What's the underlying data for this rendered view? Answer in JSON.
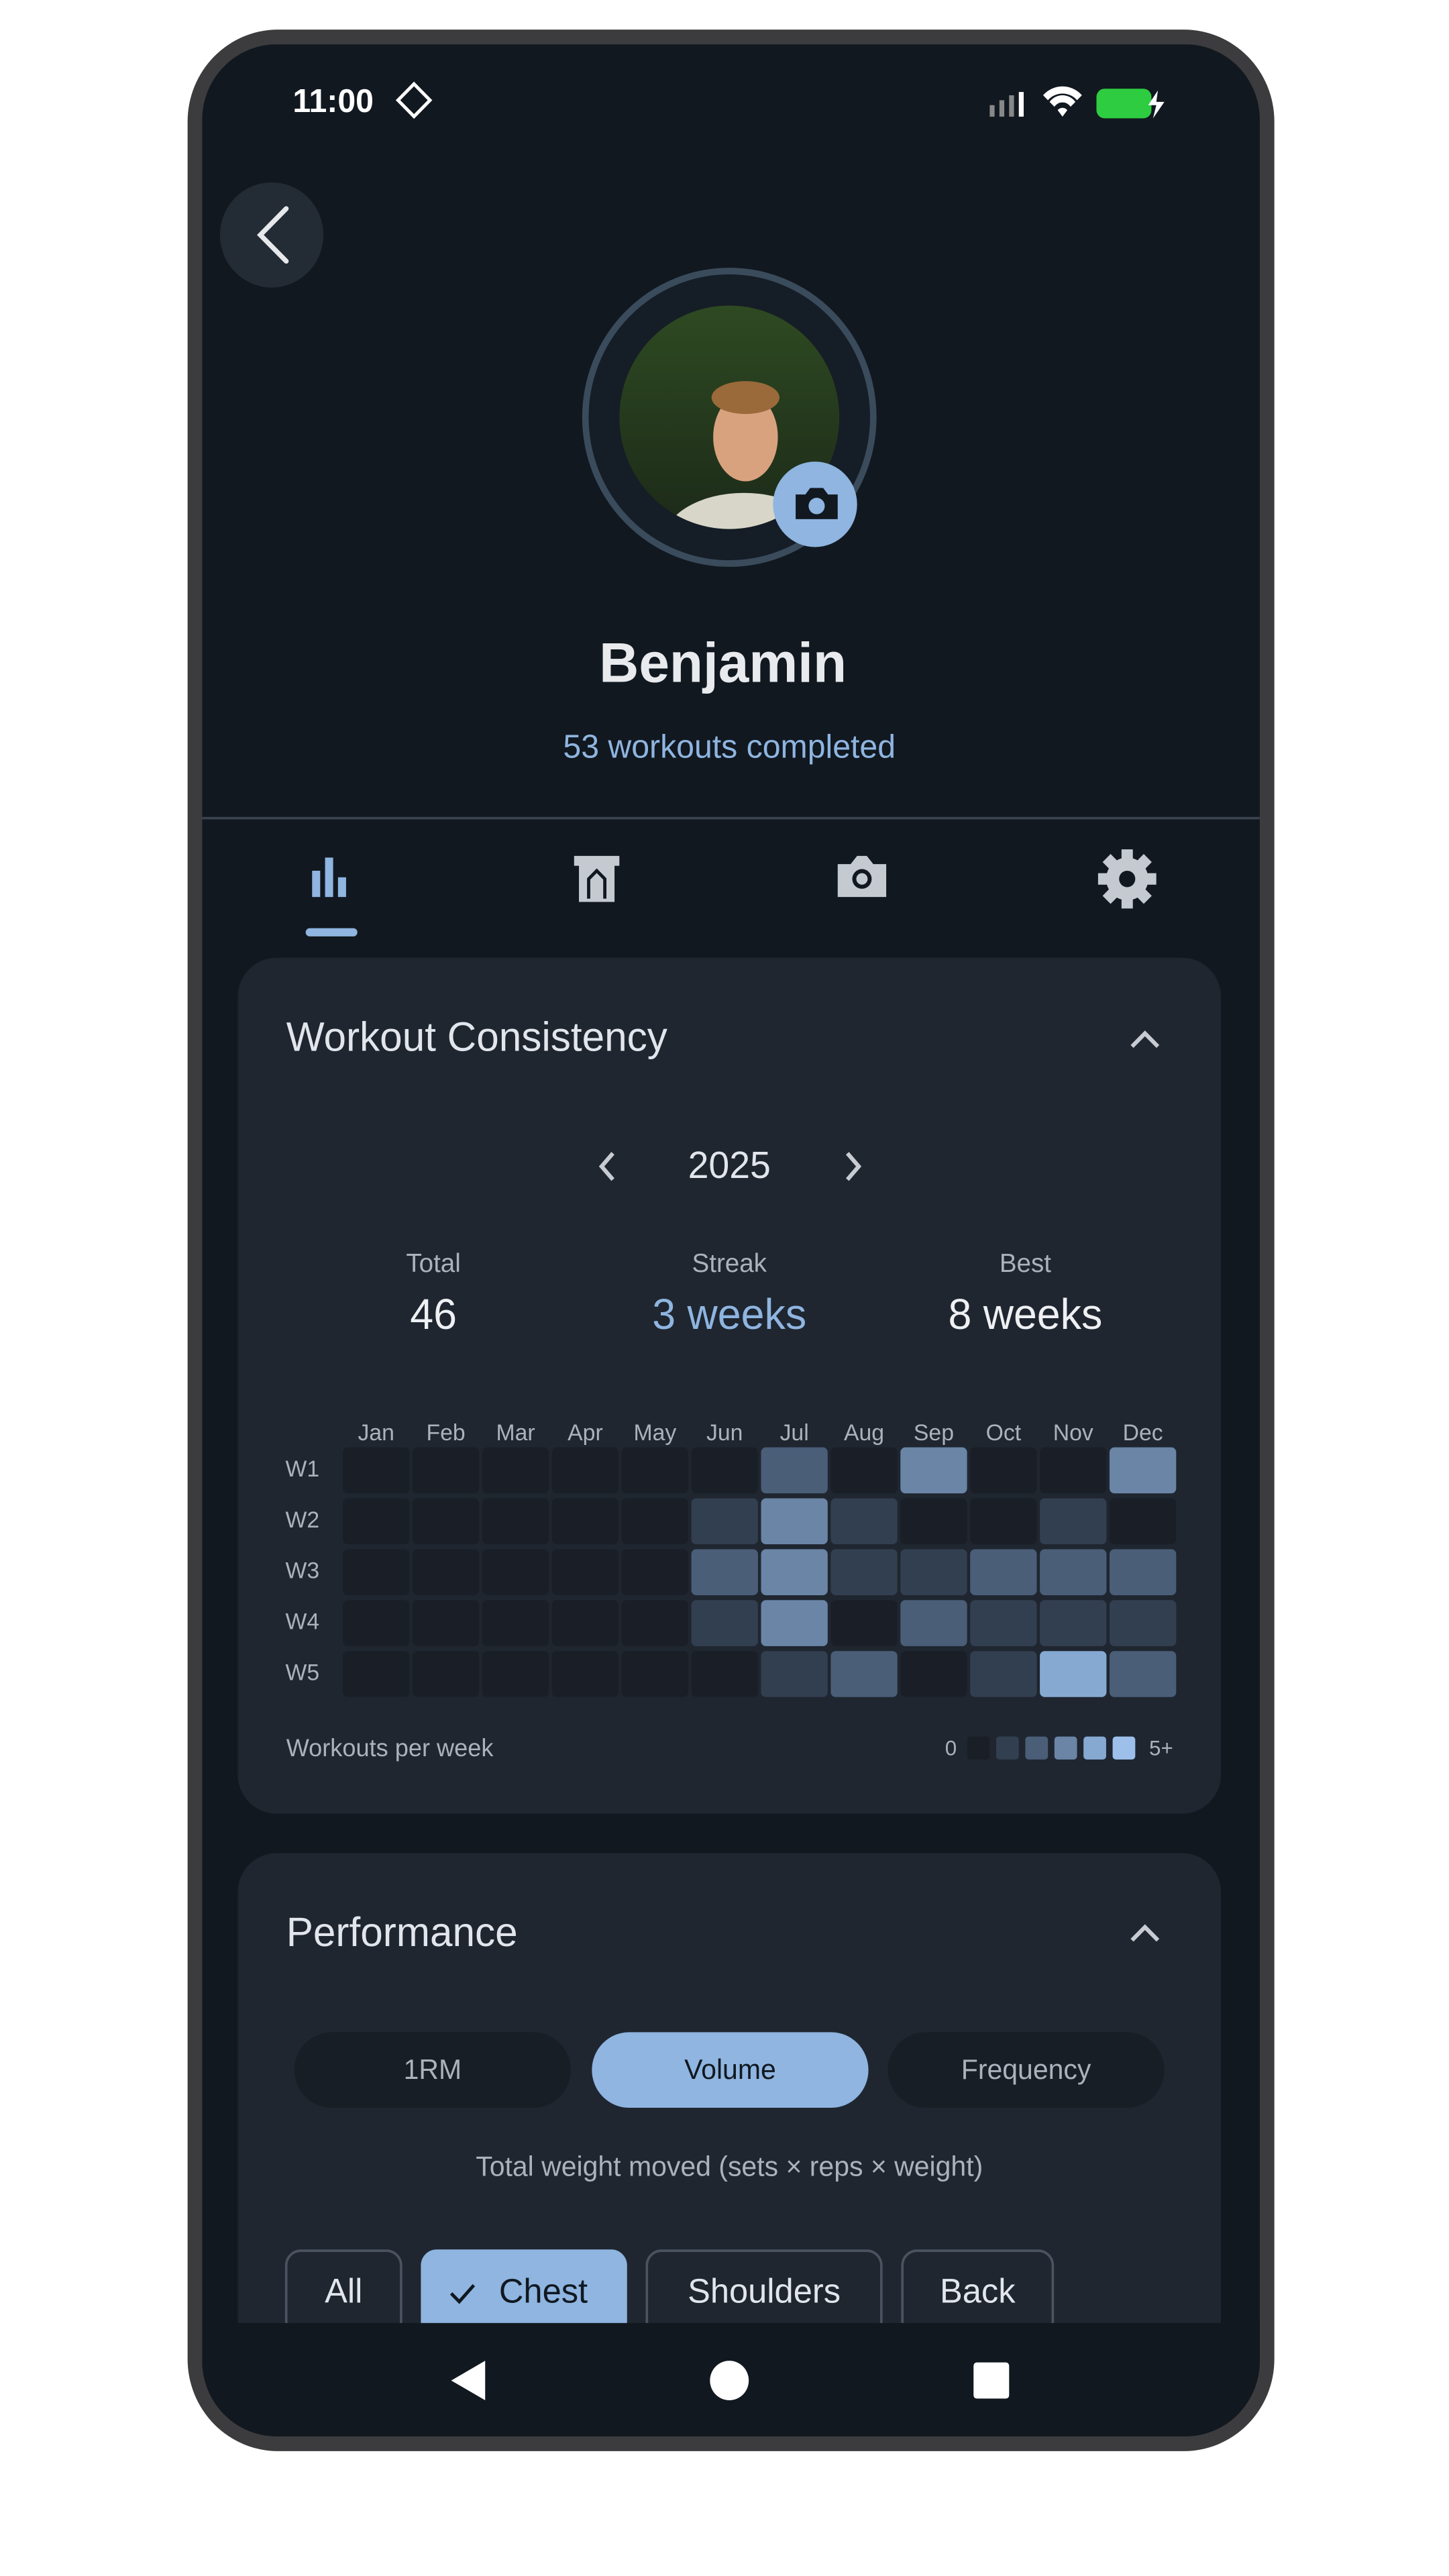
{
  "status_bar": {
    "time": "11:00"
  },
  "profile": {
    "name": "Benjamin",
    "subtitle": "53 workouts completed"
  },
  "tabs": {
    "active_index": 0
  },
  "consistency": {
    "title": "Workout Consistency",
    "year": "2025",
    "stats": [
      {
        "label": "Total",
        "value": "46"
      },
      {
        "label": "Streak",
        "value": "3 weeks"
      },
      {
        "label": "Best",
        "value": "8 weeks"
      }
    ],
    "months": [
      "Jan",
      "Feb",
      "Mar",
      "Apr",
      "May",
      "Jun",
      "Jul",
      "Aug",
      "Sep",
      "Oct",
      "Nov",
      "Dec"
    ],
    "weeks": [
      "W1",
      "W2",
      "W3",
      "W4",
      "W5"
    ],
    "values": [
      [
        0,
        0,
        0,
        0,
        0,
        0,
        2,
        0,
        3,
        0,
        0,
        3
      ],
      [
        0,
        0,
        0,
        0,
        0,
        1,
        3,
        1,
        0,
        0,
        1,
        0
      ],
      [
        0,
        0,
        0,
        0,
        0,
        2,
        3,
        1,
        1,
        2,
        2,
        2
      ],
      [
        0,
        0,
        0,
        0,
        0,
        1,
        3,
        0,
        2,
        1,
        1,
        1
      ],
      [
        0,
        0,
        0,
        0,
        0,
        0,
        1,
        2,
        0,
        1,
        4,
        2
      ]
    ],
    "level_colors": [
      "#1a1f27",
      "#323f50",
      "#4a5e78",
      "#6a85a6",
      "#86a9d2",
      "#9cc0ea"
    ],
    "footer_label": "Workouts per week",
    "legend_low": "0",
    "legend_high": "5+"
  },
  "performance": {
    "title": "Performance",
    "modes": [
      "1RM",
      "Volume",
      "Frequency"
    ],
    "selected_mode": 1,
    "description": "Total weight moved (sets × reps × weight)",
    "chips": [
      "All",
      "Chest",
      "Shoulders",
      "Back"
    ],
    "selected_chip": 1
  }
}
